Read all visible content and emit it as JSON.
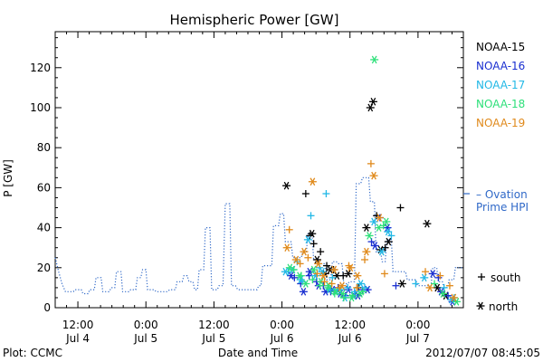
{
  "chart_data": {
    "type": "scatter",
    "title": "Hemispheric Power [GW]",
    "ylabel": "P [GW]",
    "xlabel": "Date and Time",
    "ylim": [
      0,
      138
    ],
    "xlim": [
      0,
      72
    ],
    "yticks": [
      0,
      20,
      40,
      60,
      80,
      100,
      120
    ],
    "xticks": [
      {
        "x": 4,
        "line1": "12:00",
        "line2": "Jul 4"
      },
      {
        "x": 16,
        "line1": "0:00",
        "line2": "Jul 5"
      },
      {
        "x": 28,
        "line1": "12:00",
        "line2": "Jul 5"
      },
      {
        "x": 40,
        "line1": "0:00",
        "line2": "Jul 6"
      },
      {
        "x": 52,
        "line1": "12:00",
        "line2": "Jul 6"
      },
      {
        "x": 64,
        "line1": "0:00",
        "line2": "Jul 7"
      }
    ],
    "legend_position": "right",
    "series": [
      {
        "name": "NOAA-15",
        "color": "#000000",
        "south": [
          [
            44.2,
            57
          ],
          [
            44.9,
            36
          ],
          [
            45.6,
            32
          ],
          [
            46.8,
            28
          ],
          [
            47.9,
            21
          ],
          [
            49.1,
            19
          ],
          [
            50.8,
            16
          ],
          [
            53.5,
            10
          ],
          [
            56.7,
            46
          ],
          [
            58.2,
            30
          ],
          [
            60.9,
            50
          ]
        ],
        "north": [
          [
            40.8,
            61
          ],
          [
            45.3,
            37
          ],
          [
            46.2,
            24
          ],
          [
            47.6,
            17
          ],
          [
            48.5,
            19
          ],
          [
            49.7,
            16
          ],
          [
            51.7,
            17
          ],
          [
            54.9,
            40
          ],
          [
            55.6,
            100
          ],
          [
            56.1,
            103
          ],
          [
            57.4,
            29
          ],
          [
            58.8,
            33
          ],
          [
            61.2,
            12
          ],
          [
            65.6,
            42
          ],
          [
            67.4,
            10
          ],
          [
            68.9,
            6
          ]
        ]
      },
      {
        "name": "NOAA-16",
        "color": "#1a2fd0",
        "south": [
          [
            42.2,
            15
          ],
          [
            43.3,
            12
          ],
          [
            44.8,
            16
          ],
          [
            46.1,
            13
          ],
          [
            47.3,
            11
          ],
          [
            48.6,
            8
          ],
          [
            49.9,
            10
          ],
          [
            51.2,
            6
          ],
          [
            52.9,
            7
          ],
          [
            54.2,
            9
          ],
          [
            55.8,
            33
          ],
          [
            57.3,
            45
          ],
          [
            60.1,
            11
          ],
          [
            67.6,
            15
          ],
          [
            69.3,
            6
          ]
        ],
        "north": [
          [
            41.6,
            16
          ],
          [
            43.8,
            8
          ],
          [
            44.9,
            18
          ],
          [
            46.5,
            11
          ],
          [
            47.7,
            8
          ],
          [
            48.9,
            9
          ],
          [
            50.3,
            7
          ],
          [
            51.7,
            9
          ],
          [
            53.4,
            6
          ],
          [
            55.1,
            9
          ],
          [
            56.4,
            31
          ],
          [
            58.6,
            40
          ],
          [
            66.6,
            17
          ],
          [
            68.1,
            8
          ],
          [
            70.1,
            3
          ]
        ]
      },
      {
        "name": "NOAA-17",
        "color": "#22b8e6",
        "south": [
          [
            41.1,
            18
          ],
          [
            42.7,
            23
          ],
          [
            43.6,
            13
          ],
          [
            45.1,
            46
          ],
          [
            46.6,
            20
          ],
          [
            47.8,
            57
          ],
          [
            48.9,
            15
          ],
          [
            50.4,
            9
          ],
          [
            51.6,
            10
          ],
          [
            52.8,
            8
          ],
          [
            54.6,
            10
          ],
          [
            59.3,
            36
          ],
          [
            63.6,
            12
          ],
          [
            68.6,
            10
          ],
          [
            70.4,
            5
          ]
        ],
        "north": [
          [
            40.6,
            18
          ],
          [
            41.9,
            19
          ],
          [
            43.3,
            14
          ],
          [
            44.6,
            34
          ],
          [
            45.9,
            16
          ],
          [
            47.1,
            18
          ],
          [
            48.4,
            9
          ],
          [
            49.6,
            8
          ],
          [
            51.1,
            5
          ],
          [
            52.6,
            6
          ],
          [
            53.9,
            12
          ],
          [
            56.2,
            43
          ],
          [
            57.6,
            28
          ],
          [
            58.7,
            38
          ],
          [
            65.1,
            15
          ],
          [
            69.9,
            4
          ]
        ]
      },
      {
        "name": "NOAA-18",
        "color": "#2ee07a",
        "south": [
          [
            42.1,
            19
          ],
          [
            43.4,
            16
          ],
          [
            45.4,
            14
          ],
          [
            46.7,
            11
          ],
          [
            48.1,
            10
          ],
          [
            49.3,
            7
          ],
          [
            50.9,
            5
          ],
          [
            52.4,
            6
          ],
          [
            54.3,
            8
          ],
          [
            57.9,
            41
          ],
          [
            66.9,
            12
          ]
        ],
        "north": [
          [
            41.4,
            20
          ],
          [
            43.1,
            16
          ],
          [
            44.2,
            12
          ],
          [
            45.6,
            19
          ],
          [
            46.9,
            13
          ],
          [
            48.2,
            11
          ],
          [
            49.4,
            8
          ],
          [
            50.7,
            7
          ],
          [
            52.3,
            5
          ],
          [
            53.8,
            7
          ],
          [
            55.4,
            36
          ],
          [
            56.3,
            124
          ],
          [
            57.1,
            40
          ],
          [
            58.4,
            43
          ],
          [
            68.4,
            7
          ],
          [
            70.8,
            3
          ]
        ]
      },
      {
        "name": "NOAA-19",
        "color": "#e08a1c",
        "south": [
          [
            41.3,
            39
          ],
          [
            43.2,
            22
          ],
          [
            44.6,
            25
          ],
          [
            46.2,
            17
          ],
          [
            47.5,
            13
          ],
          [
            48.8,
            12
          ],
          [
            50.1,
            10
          ],
          [
            51.8,
            21
          ],
          [
            53.2,
            10
          ],
          [
            54.6,
            24
          ],
          [
            55.7,
            72
          ],
          [
            58.1,
            17
          ],
          [
            65.3,
            18
          ],
          [
            67.9,
            16
          ],
          [
            69.6,
            11
          ]
        ],
        "north": [
          [
            40.9,
            30
          ],
          [
            42.5,
            24
          ],
          [
            43.9,
            28
          ],
          [
            45.4,
            63
          ],
          [
            46.4,
            22
          ],
          [
            47.3,
            16
          ],
          [
            49.2,
            19
          ],
          [
            50.6,
            11
          ],
          [
            52.1,
            20
          ],
          [
            53.3,
            16
          ],
          [
            54.9,
            28
          ],
          [
            56.2,
            66
          ],
          [
            57.2,
            45
          ],
          [
            66.1,
            10
          ],
          [
            70.3,
            5
          ]
        ]
      }
    ],
    "hpi_name": "Ovation Prime HPI",
    "hpi": [
      [
        0,
        25
      ],
      [
        0.6,
        18
      ],
      [
        1.2,
        12
      ],
      [
        1.8,
        8
      ],
      [
        3.2,
        8
      ],
      [
        3.5,
        9
      ],
      [
        4.6,
        9
      ],
      [
        4.9,
        7
      ],
      [
        5.8,
        7
      ],
      [
        6.1,
        9
      ],
      [
        6.9,
        9
      ],
      [
        7.2,
        15
      ],
      [
        8.1,
        15
      ],
      [
        8.4,
        8
      ],
      [
        9.5,
        8
      ],
      [
        9.9,
        10
      ],
      [
        10.5,
        10
      ],
      [
        10.8,
        18
      ],
      [
        11.6,
        18
      ],
      [
        11.9,
        8
      ],
      [
        13,
        8
      ],
      [
        13.3,
        9
      ],
      [
        14.2,
        9
      ],
      [
        14.5,
        15
      ],
      [
        15.1,
        15
      ],
      [
        15.4,
        19
      ],
      [
        16,
        19
      ],
      [
        16.3,
        9
      ],
      [
        17.5,
        9
      ],
      [
        17.8,
        8
      ],
      [
        19.8,
        8
      ],
      [
        20.2,
        9
      ],
      [
        21.2,
        9
      ],
      [
        21.5,
        13
      ],
      [
        22.4,
        13
      ],
      [
        22.7,
        16
      ],
      [
        23.3,
        16
      ],
      [
        23.6,
        13
      ],
      [
        24.3,
        13
      ],
      [
        24.6,
        9
      ],
      [
        25.1,
        9
      ],
      [
        25.4,
        19
      ],
      [
        26.2,
        19
      ],
      [
        26.5,
        40
      ],
      [
        27.3,
        40
      ],
      [
        27.6,
        9
      ],
      [
        28.6,
        9
      ],
      [
        28.9,
        11
      ],
      [
        29.6,
        11
      ],
      [
        30,
        52
      ],
      [
        30.8,
        52
      ],
      [
        31.1,
        11
      ],
      [
        31.8,
        11
      ],
      [
        32.2,
        9
      ],
      [
        35.6,
        9
      ],
      [
        35.9,
        11
      ],
      [
        36.3,
        11
      ],
      [
        36.6,
        21
      ],
      [
        38.2,
        21
      ],
      [
        38.5,
        41
      ],
      [
        39.4,
        41
      ],
      [
        39.7,
        47
      ],
      [
        40.3,
        47
      ],
      [
        40.6,
        33
      ],
      [
        41.6,
        33
      ],
      [
        41.9,
        25
      ],
      [
        43.4,
        25
      ],
      [
        43.7,
        28
      ],
      [
        44.3,
        28
      ],
      [
        44.6,
        37
      ],
      [
        45.3,
        37
      ],
      [
        45.6,
        24
      ],
      [
        46.6,
        24
      ],
      [
        46.9,
        22
      ],
      [
        47.6,
        22
      ],
      [
        47.9,
        14
      ],
      [
        48.6,
        14
      ],
      [
        48.9,
        23
      ],
      [
        49.6,
        23
      ],
      [
        49.9,
        22
      ],
      [
        50.6,
        22
      ],
      [
        50.9,
        12
      ],
      [
        51.6,
        12
      ],
      [
        51.9,
        13
      ],
      [
        52.8,
        13
      ],
      [
        53.1,
        62
      ],
      [
        53.9,
        62
      ],
      [
        54.2,
        65
      ],
      [
        55.3,
        65
      ],
      [
        55.6,
        53
      ],
      [
        56.3,
        53
      ],
      [
        56.6,
        28
      ],
      [
        57.4,
        28
      ],
      [
        57.7,
        23
      ],
      [
        58.2,
        23
      ],
      [
        58.5,
        34
      ],
      [
        59.3,
        34
      ],
      [
        59.6,
        18
      ],
      [
        61.8,
        18
      ],
      [
        62.1,
        14
      ],
      [
        63.6,
        14
      ],
      [
        63.9,
        11
      ],
      [
        66.3,
        11
      ],
      [
        66.6,
        20
      ],
      [
        67.3,
        20
      ],
      [
        67.6,
        13
      ],
      [
        68.3,
        13
      ],
      [
        68.6,
        10
      ],
      [
        69.2,
        10
      ],
      [
        69.5,
        14
      ],
      [
        70.3,
        14
      ],
      [
        70.6,
        20
      ],
      [
        72,
        20
      ]
    ],
    "legend_south": "south",
    "legend_north": "north",
    "hpi_color": "#3069c8"
  },
  "footer": {
    "plot_label": "Plot: CCMC",
    "timestamp": "2012/07/07 08:45:05"
  }
}
